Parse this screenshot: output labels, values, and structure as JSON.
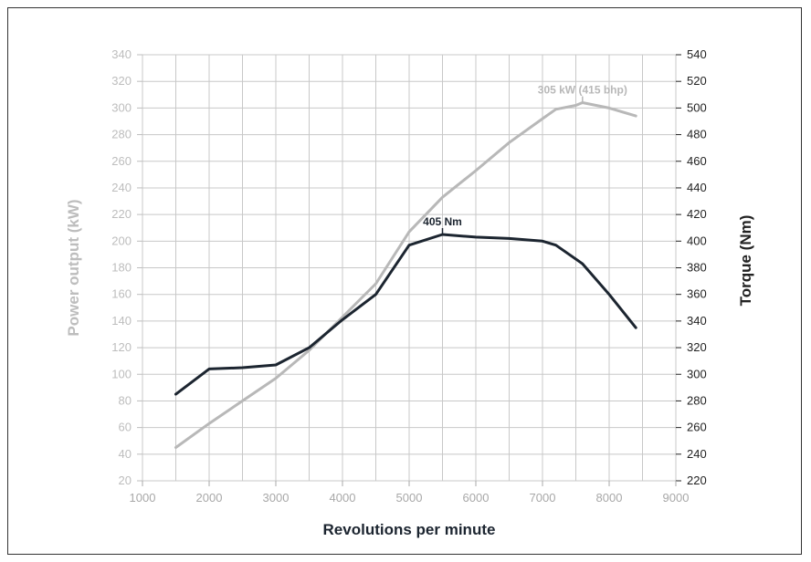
{
  "chart_data": {
    "type": "line",
    "title": "",
    "xlabel": "Revolutions per minute",
    "ylabel_left": "Power output (kW)",
    "ylabel_right": "Torque (Nm)",
    "xlim": [
      1000,
      9000
    ],
    "x_ticks": [
      1000,
      2000,
      3000,
      4000,
      5000,
      6000,
      7000,
      8000,
      9000
    ],
    "x_minor_step": 500,
    "ylim_left": [
      20,
      340
    ],
    "y_ticks_left": [
      20,
      40,
      60,
      80,
      100,
      120,
      140,
      160,
      180,
      200,
      220,
      240,
      260,
      280,
      300,
      320,
      340
    ],
    "ylim_right": [
      220,
      540
    ],
    "y_ticks_right": [
      220,
      240,
      260,
      280,
      300,
      320,
      340,
      360,
      380,
      400,
      420,
      440,
      460,
      480,
      500,
      520,
      540
    ],
    "grid": true,
    "colors": {
      "power": "#b8b8b8",
      "torque": "#1c2530",
      "grid": "#c8c8c8",
      "left_axis": "#bdbdbd",
      "right_axis": "#222222",
      "x_tick": "#a8a8a8",
      "xlabel": "#1c2530"
    },
    "series": [
      {
        "name": "Power output (kW)",
        "axis": "left",
        "x": [
          1500,
          2000,
          2500,
          3000,
          3500,
          4000,
          4500,
          5000,
          5500,
          6000,
          6500,
          7000,
          7200,
          7500,
          7600,
          8000,
          8400
        ],
        "y": [
          45,
          63,
          80,
          97,
          118,
          143,
          168,
          207,
          233,
          253,
          274,
          292,
          299,
          302,
          304,
          300,
          294
        ]
      },
      {
        "name": "Torque (Nm)",
        "axis": "right",
        "x": [
          1500,
          2000,
          2500,
          3000,
          3500,
          4000,
          4500,
          5000,
          5500,
          6000,
          6500,
          7000,
          7200,
          7600,
          8000,
          8400
        ],
        "y": [
          285,
          304,
          305,
          307,
          320,
          341,
          360,
          397,
          405,
          403,
          402,
          400,
          397,
          383,
          360,
          335
        ]
      }
    ],
    "annotations": [
      {
        "text": "305 kW (415 bhp)",
        "series": "Power output (kW)",
        "x": 7600,
        "y": 304
      },
      {
        "text": "405 Nm",
        "series": "Torque (Nm)",
        "x": 5500,
        "y": 405
      }
    ]
  }
}
